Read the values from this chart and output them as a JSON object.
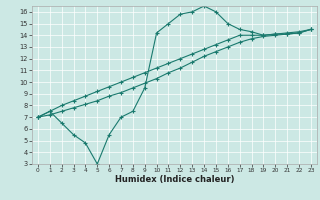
{
  "xlabel": "Humidex (Indice chaleur)",
  "bg_color": "#cce8e4",
  "line_color": "#1a7a6e",
  "xlim": [
    -0.5,
    23.5
  ],
  "ylim": [
    3,
    16.5
  ],
  "xticks": [
    0,
    1,
    2,
    3,
    4,
    5,
    6,
    7,
    8,
    9,
    10,
    11,
    12,
    13,
    14,
    15,
    16,
    17,
    18,
    19,
    20,
    21,
    22,
    23
  ],
  "yticks": [
    3,
    4,
    5,
    6,
    7,
    8,
    9,
    10,
    11,
    12,
    13,
    14,
    15,
    16
  ],
  "line1_x": [
    0,
    1,
    2,
    3,
    4,
    5,
    6,
    7,
    8,
    9,
    10,
    11,
    12,
    13,
    14,
    15,
    16,
    17,
    18,
    19,
    20,
    21,
    22,
    23
  ],
  "line1_y": [
    7.0,
    7.5,
    8.0,
    8.4,
    8.8,
    9.2,
    9.6,
    10.0,
    10.4,
    10.8,
    11.2,
    11.6,
    12.0,
    12.4,
    12.8,
    13.2,
    13.6,
    14.0,
    14.0,
    14.0,
    14.1,
    14.1,
    14.2,
    14.5
  ],
  "line2_x": [
    0,
    1,
    2,
    3,
    4,
    5,
    6,
    7,
    8,
    9,
    10,
    11,
    12,
    13,
    14,
    15,
    16,
    17,
    18,
    19,
    20,
    21,
    22,
    23
  ],
  "line2_y": [
    7.0,
    7.2,
    7.5,
    7.8,
    8.1,
    8.4,
    8.8,
    9.1,
    9.5,
    9.9,
    10.3,
    10.8,
    11.2,
    11.7,
    12.2,
    12.6,
    13.0,
    13.4,
    13.7,
    13.9,
    14.0,
    14.1,
    14.2,
    14.5
  ],
  "line3_x": [
    0,
    1,
    2,
    3,
    4,
    5,
    6,
    7,
    8,
    9,
    10,
    11,
    12,
    13,
    14,
    15,
    16,
    17,
    18,
    19,
    20,
    21,
    22,
    23
  ],
  "line3_y": [
    7.0,
    7.5,
    6.5,
    5.5,
    4.8,
    3.0,
    5.5,
    7.0,
    7.5,
    9.5,
    14.2,
    15.0,
    15.8,
    16.0,
    16.5,
    16.0,
    15.0,
    14.5,
    14.3,
    14.0,
    14.1,
    14.2,
    14.3,
    14.5
  ]
}
